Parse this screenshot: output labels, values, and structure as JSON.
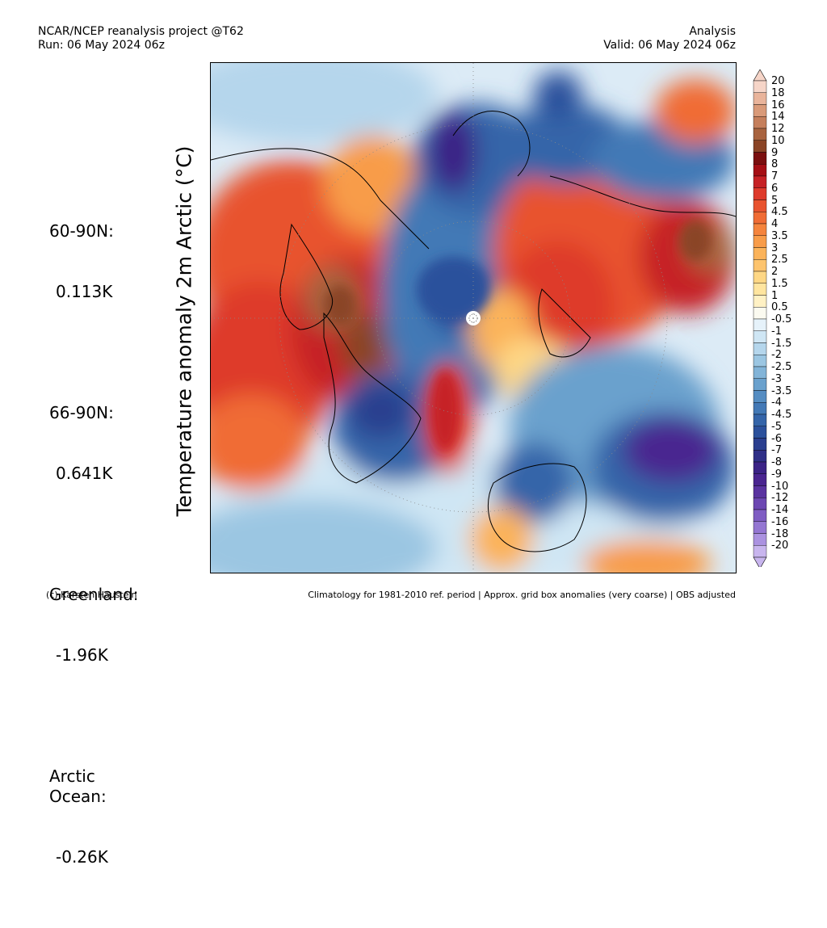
{
  "header": {
    "line1_left": "NCAR/NCEP reanalysis project @T62",
    "line2_left": "Run: 06 May 2024 06z",
    "line1_right": "Analysis",
    "line2_right": "Valid: 06 May 2024 06z"
  },
  "title": "Temperature anomaly 2m Arctic (°C)",
  "stats": [
    {
      "label": "60-90N:",
      "value": "0.113K"
    },
    {
      "label": "66-90N:",
      "value": "0.641K"
    },
    {
      "label": "Greenland:",
      "value": "-1.96K"
    },
    {
      "label": "Arctic\nOcean:",
      "value": "-0.26K"
    }
  ],
  "colorbar": {
    "labels": [
      "20",
      "18",
      "16",
      "14",
      "12",
      "10",
      "9",
      "8",
      "7",
      "6",
      "5",
      "4.5",
      "4",
      "3.5",
      "3",
      "2.5",
      "2",
      "1.5",
      "1",
      "0.5",
      "-0.5",
      "-1",
      "-1.5",
      "-2",
      "-2.5",
      "-3",
      "-3.5",
      "-4",
      "-4.5",
      "-5",
      "-6",
      "-7",
      "-8",
      "-9",
      "-10",
      "-12",
      "-14",
      "-16",
      "-18",
      "-20"
    ],
    "colors": [
      "#f6d5c8",
      "#e9b49b",
      "#d99a79",
      "#c57f5c",
      "#a8633f",
      "#8a4426",
      "#7a0f0f",
      "#a50f15",
      "#c62226",
      "#de3b2c",
      "#e8532f",
      "#f06c35",
      "#f5843d",
      "#f89c49",
      "#fbb35a",
      "#fdc46e",
      "#fed785",
      "#ffe59f",
      "#fff1c4",
      "#fbfaf0",
      "#e6f2fa",
      "#cfe6f4",
      "#b5d6ec",
      "#9bc6e2",
      "#82b4d8",
      "#6aa1cd",
      "#558dc2",
      "#4379b6",
      "#3565a9",
      "#2c519c",
      "#2b3f8f",
      "#2f2f87",
      "#3b2386",
      "#4a2590",
      "#5a33a0",
      "#6c47b2",
      "#7f5dc3",
      "#9476d2",
      "#ab92e0",
      "#c8b5ee"
    ]
  },
  "footer": {
    "left": "(c) Karsten Haustein",
    "right": "Climatology for 1981-2010 ref. period | Approx. grid box anomalies (very coarse) | OBS adjusted"
  }
}
